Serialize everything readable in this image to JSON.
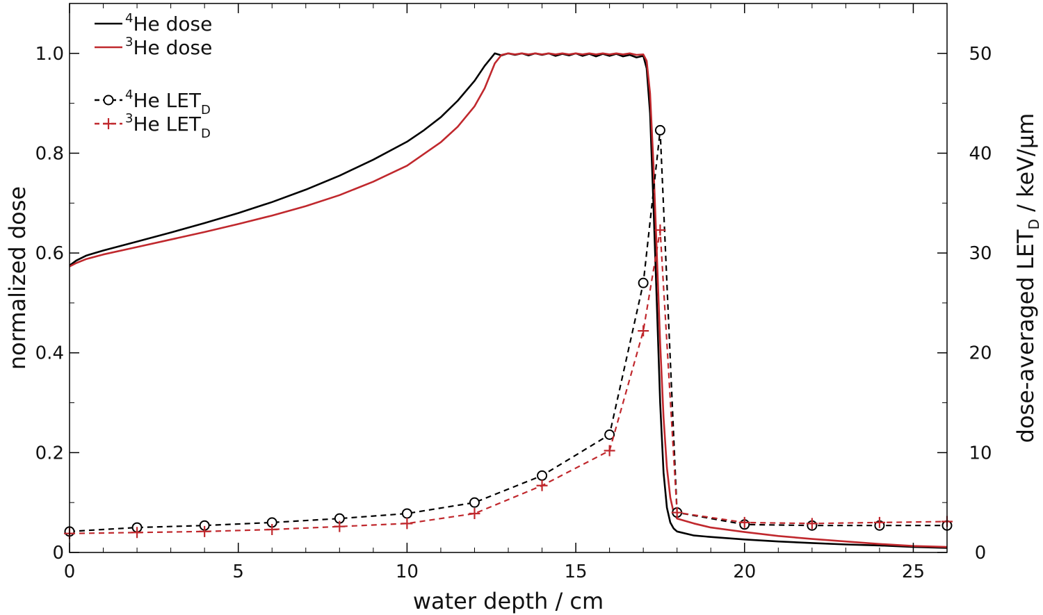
{
  "chart_data": {
    "type": "line",
    "xlabel": "water depth / cm",
    "ylabel_left": "normalized dose",
    "ylabel_right": {
      "prefix": "dose-averaged LET",
      "sub": "D",
      "suffix": " / keV/µm"
    },
    "xlim": [
      0,
      26
    ],
    "ylim_left": [
      0,
      1.1
    ],
    "ylim_right": [
      0,
      55
    ],
    "x_ticks": [
      0,
      5,
      10,
      15,
      20,
      25
    ],
    "x_tick_labels": [
      "0",
      "5",
      "10",
      "15",
      "20",
      "25"
    ],
    "y_left_ticks": [
      0,
      0.2,
      0.4,
      0.6,
      0.8,
      1.0
    ],
    "y_left_tick_labels": [
      "0",
      "0.2",
      "0.4",
      "0.6",
      "0.8",
      "1.0"
    ],
    "y_right_ticks": [
      0,
      10,
      20,
      30,
      40,
      50
    ],
    "y_right_tick_labels": [
      "0",
      "10",
      "20",
      "30",
      "40",
      "50"
    ],
    "legend_position": "top-left",
    "series": [
      {
        "name": "He dose",
        "sup": "4",
        "sub": "",
        "axis": "left",
        "style": "solid",
        "marker": "none",
        "color": "#000000",
        "x": [
          0,
          0.2,
          0.5,
          1,
          2,
          3,
          4,
          5,
          6,
          7,
          8,
          9,
          10,
          10.5,
          11,
          11.5,
          12,
          12.3,
          12.6,
          12.8,
          13.0,
          13.2,
          13.4,
          13.6,
          13.8,
          14.0,
          14.2,
          14.4,
          14.6,
          14.8,
          15.0,
          15.2,
          15.4,
          15.6,
          15.8,
          16.0,
          16.2,
          16.4,
          16.6,
          16.8,
          17.0,
          17.1,
          17.2,
          17.3,
          17.4,
          17.5,
          17.6,
          17.7,
          17.8,
          17.9,
          18.0,
          18.5,
          19,
          20,
          21,
          22,
          23,
          24,
          25,
          26
        ],
        "y": [
          0.575,
          0.585,
          0.595,
          0.605,
          0.623,
          0.641,
          0.66,
          0.68,
          0.702,
          0.727,
          0.755,
          0.787,
          0.823,
          0.846,
          0.872,
          0.905,
          0.945,
          0.975,
          1.0,
          0.996,
          1.0,
          0.997,
          1.0,
          0.996,
          1.0,
          0.997,
          1.0,
          0.995,
          0.999,
          0.996,
          1.0,
          0.995,
          0.999,
          0.994,
          0.999,
          0.995,
          0.999,
          0.994,
          0.997,
          0.992,
          0.995,
          0.97,
          0.88,
          0.7,
          0.5,
          0.3,
          0.16,
          0.09,
          0.06,
          0.048,
          0.042,
          0.034,
          0.031,
          0.026,
          0.022,
          0.019,
          0.016,
          0.014,
          0.011,
          0.009
        ]
      },
      {
        "name": "He dose",
        "sup": "3",
        "sub": "",
        "axis": "left",
        "style": "solid",
        "marker": "none",
        "color": "#c0282d",
        "x": [
          0,
          0.2,
          0.5,
          1,
          2,
          3,
          4,
          5,
          6,
          7,
          8,
          9,
          10,
          11,
          11.5,
          12,
          12.3,
          12.6,
          12.8,
          13.0,
          13.2,
          13.4,
          13.6,
          13.8,
          14.0,
          14.2,
          14.4,
          14.6,
          14.8,
          15.0,
          15.2,
          15.4,
          15.6,
          15.8,
          16.0,
          16.2,
          16.4,
          16.6,
          16.8,
          17.0,
          17.1,
          17.2,
          17.3,
          17.4,
          17.5,
          17.6,
          17.7,
          17.8,
          17.9,
          18.0,
          18.5,
          19,
          20,
          21,
          22,
          23,
          24,
          25,
          26
        ],
        "y": [
          0.573,
          0.58,
          0.588,
          0.597,
          0.612,
          0.627,
          0.642,
          0.658,
          0.675,
          0.694,
          0.716,
          0.743,
          0.775,
          0.822,
          0.853,
          0.894,
          0.93,
          0.98,
          0.997,
          1.0,
          0.998,
          1.0,
          0.998,
          1.0,
          0.998,
          1.0,
          0.998,
          1.0,
          0.998,
          1.0,
          0.998,
          1.0,
          0.998,
          1.0,
          0.998,
          1.0,
          0.998,
          1.0,
          0.997,
          0.998,
          0.985,
          0.92,
          0.78,
          0.6,
          0.42,
          0.27,
          0.17,
          0.11,
          0.08,
          0.068,
          0.058,
          0.05,
          0.041,
          0.033,
          0.027,
          0.022,
          0.017,
          0.013,
          0.011
        ]
      },
      {
        "name": "He LET",
        "sup": "4",
        "sub": "D",
        "axis": "right",
        "style": "dashed",
        "marker": "circle",
        "color": "#000000",
        "x": [
          0,
          2,
          4,
          6,
          8,
          10,
          12,
          14,
          16,
          17,
          17.5,
          18,
          20,
          22,
          24,
          26
        ],
        "y": [
          2.1,
          2.5,
          2.7,
          3.0,
          3.4,
          3.9,
          5.0,
          7.7,
          11.8,
          27.0,
          42.3,
          4.0,
          2.8,
          2.7,
          2.7,
          2.7
        ]
      },
      {
        "name": "He LET",
        "sup": "3",
        "sub": "D",
        "axis": "right",
        "style": "dashed",
        "marker": "plus",
        "color": "#c0282d",
        "x": [
          0,
          2,
          4,
          6,
          8,
          10,
          12,
          14,
          16,
          17,
          17.5,
          18,
          20,
          22,
          24,
          26
        ],
        "y": [
          1.9,
          2.0,
          2.1,
          2.3,
          2.6,
          2.9,
          3.9,
          6.7,
          10.2,
          22.2,
          32.3,
          4.0,
          3.0,
          2.9,
          3.0,
          3.1
        ]
      }
    ]
  }
}
